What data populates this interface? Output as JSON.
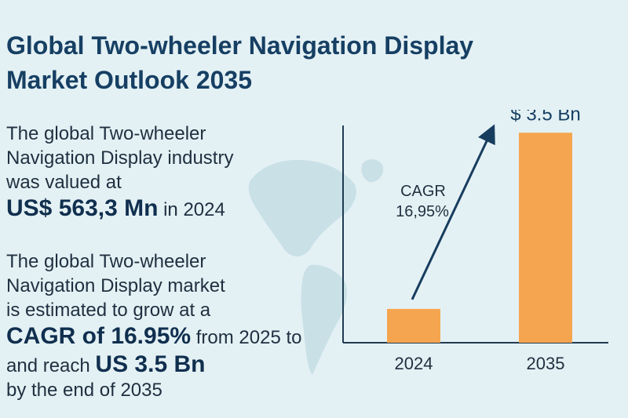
{
  "title": {
    "line1": "Global Two-wheeler Navigation Display",
    "line2": "Market Outlook 2035"
  },
  "paragraph1": {
    "line1": "The global Two-wheeler",
    "line2": "Navigation Display industry",
    "line3": "was valued at",
    "highlight": "US$ 563,3 Mn",
    "suffix": " in 2024"
  },
  "paragraph2": {
    "line1": "The global Two-wheeler",
    "line2": "Navigation Display market",
    "line3": "is estimated to grow at a",
    "highlight": "CAGR of 16.95%",
    "highlight_suffix": " from 2025 to",
    "line5_prefix": "and reach ",
    "line5_highlight": "US 3.5 Bn",
    "line6": "by the end of 2035"
  },
  "chart_data": {
    "type": "bar",
    "categories": [
      "2024",
      "2035"
    ],
    "values": [
      0.5633,
      3.5
    ],
    "value_labels": [
      "",
      "$ 3.5 Bn"
    ],
    "annotation": {
      "line1": "CAGR",
      "line2": "16,95%"
    },
    "ylim": [
      0,
      4.0
    ],
    "grid": false,
    "legend": "none"
  },
  "colors": {
    "background": "#e4f1f4",
    "title": "#163f63",
    "bar": "#f5a54f",
    "axis": "#1f3b52",
    "arrow": "#173d5e",
    "map": "#c9e0e7"
  }
}
